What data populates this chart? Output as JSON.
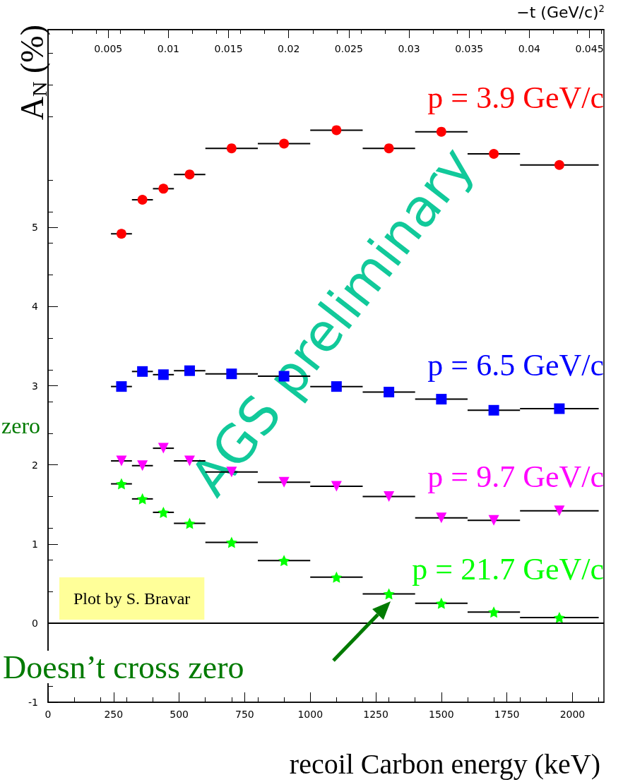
{
  "chart_data": {
    "type": "scatter",
    "xlabel": "recoil Carbon energy (keV)",
    "ylabel": "A$_{N}$ (%)",
    "x2label": "−t (GeV/c)$^{2}$",
    "xlim": [
      0,
      2120
    ],
    "xticks": [
      0,
      250,
      500,
      750,
      1000,
      1250,
      1500,
      1750,
      2000
    ],
    "x2lim": [
      0,
      0.0462
    ],
    "x2ticks": [
      0.005,
      0.01,
      0.015,
      0.02,
      0.025,
      0.03,
      0.035,
      0.04,
      0.045
    ],
    "ylim": [
      -1,
      7.5
    ],
    "yticks": [
      -1,
      0,
      1,
      2,
      3,
      4,
      5
    ],
    "x": [
      280,
      360,
      440,
      540,
      700,
      900,
      1100,
      1300,
      1500,
      1700,
      1950
    ],
    "series": [
      {
        "name": "p = 3.9 GeV/c",
        "color": "#ff0000",
        "marker": "circle",
        "values": [
          4.92,
          5.35,
          5.49,
          5.67,
          6.0,
          6.06,
          6.23,
          6.0,
          6.21,
          5.93,
          5.79
        ],
        "xerrors": [
          40,
          40,
          40,
          60,
          100,
          100,
          100,
          100,
          100,
          100,
          150
        ]
      },
      {
        "name": "p = 6.5 GeV/c",
        "color": "#0000ff",
        "marker": "square",
        "values": [
          2.99,
          3.18,
          3.14,
          3.19,
          3.15,
          3.12,
          2.99,
          2.92,
          2.83,
          2.69,
          2.71
        ],
        "xerrors": [
          40,
          40,
          40,
          60,
          100,
          100,
          100,
          100,
          100,
          100,
          150
        ]
      },
      {
        "name": "p = 9.7 GeV/c",
        "color": "#ff00ff",
        "marker": "triangle",
        "values": [
          2.05,
          1.99,
          2.21,
          2.05,
          1.91,
          1.78,
          1.73,
          1.6,
          1.33,
          1.3,
          1.42
        ],
        "xerrors": [
          40,
          40,
          40,
          60,
          100,
          100,
          100,
          100,
          100,
          100,
          150
        ]
      },
      {
        "name": "p = 21.7 GeV/c",
        "color": "#00ff00",
        "marker": "star",
        "values": [
          1.76,
          1.57,
          1.4,
          1.26,
          1.02,
          0.79,
          0.58,
          0.37,
          0.25,
          0.14,
          0.07
        ],
        "xerrors": [
          40,
          40,
          40,
          60,
          100,
          100,
          100,
          100,
          100,
          100,
          150
        ]
      }
    ],
    "ref_lines": [
      {
        "axis": "y",
        "value": 0,
        "color": "#000000",
        "line_style": "solid"
      }
    ],
    "annotations": [
      "AGS preliminary",
      "Plot by S. Bravar",
      "Doesn’t cross zero",
      "zero"
    ],
    "grid": false,
    "legend": false
  }
}
